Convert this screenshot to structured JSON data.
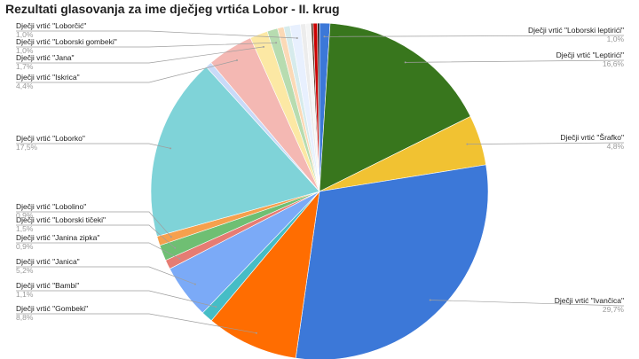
{
  "chart_data": {
    "type": "pie",
    "title": "Rezultati glasovanja za ime dječjeg vrtića Lobor - II. krug",
    "slices": [
      {
        "name": "Dječji vrtić \"Loborski leptirići\"",
        "value": 1.0,
        "label": "1,0%",
        "color": "#3c78d8"
      },
      {
        "name": "Dječji vrtić \"Leptirići\"",
        "value": 16.6,
        "label": "16,6%",
        "color": "#38761d"
      },
      {
        "name": "Dječji vrtić \"Šrafko\"",
        "value": 4.8,
        "label": "4,8%",
        "color": "#f1c232"
      },
      {
        "name": "Dječji vrtić \"Ivančica\"",
        "value": 29.7,
        "label": "29,7%",
        "color": "#3c78d8"
      },
      {
        "name": "Dječji vrtić \"Gombeki\"",
        "value": 8.8,
        "label": "8,8%",
        "color": "#ff6d01"
      },
      {
        "name": "Dječji vrtić \"Bambi\"",
        "value": 1.1,
        "label": "1,1%",
        "color": "#46bdc6"
      },
      {
        "name": "Dječji vrtić \"Janica\"",
        "value": 5.2,
        "label": "5,2%",
        "color": "#7baaf7"
      },
      {
        "name": "Dječji vrtić \"Janina zipka\"",
        "value": 0.9,
        "label": "0,9%",
        "color": "#e67c73"
      },
      {
        "name": "Dječji vrtić \"Loborski tičeki\"",
        "value": 1.5,
        "label": "1,5%",
        "color": "#6fbf73"
      },
      {
        "name": "Dječji vrtić \"Lobolino\"",
        "value": 0.9,
        "label": "0,9%",
        "color": "#f6a04d"
      },
      {
        "name": "Dječji vrtić \"Loborko\"",
        "value": 17.5,
        "label": "17,5%",
        "color": "#7fd3d8"
      },
      {
        "name": "",
        "value": 0.6,
        "label": "",
        "color": "#c9daf8"
      },
      {
        "name": "Dječji vrtić \"Iskrica\"",
        "value": 4.4,
        "label": "4,4%",
        "color": "#f4b8b3"
      },
      {
        "name": "Dječji vrtić \"Jana\"",
        "value": 1.7,
        "label": "1,7%",
        "color": "#fce8a4"
      },
      {
        "name": "Dječji vrtić \"Loborski gombeki\"",
        "value": 1.0,
        "label": "1,0%",
        "color": "#b7dcb0"
      },
      {
        "name": "",
        "value": 0.6,
        "label": "",
        "color": "#fbd9b6"
      },
      {
        "name": "",
        "value": 0.6,
        "label": "",
        "color": "#d6ebec"
      },
      {
        "name": "Dječji vrtić \"Loborčić\"",
        "value": 1.0,
        "label": "1,0%",
        "color": "#e8f0fe"
      },
      {
        "name": "",
        "value": 0.5,
        "label": "",
        "color": "#ececec"
      },
      {
        "name": "",
        "value": 0.5,
        "label": "",
        "color": "#f5f5f5"
      },
      {
        "name": "",
        "value": 0.2,
        "label": "",
        "color": "#5b3a29"
      },
      {
        "name": "",
        "value": 0.4,
        "label": "",
        "color": "#cc0000"
      },
      {
        "name": "",
        "value": 0.2,
        "label": "",
        "color": "#1c1c1c"
      }
    ]
  }
}
